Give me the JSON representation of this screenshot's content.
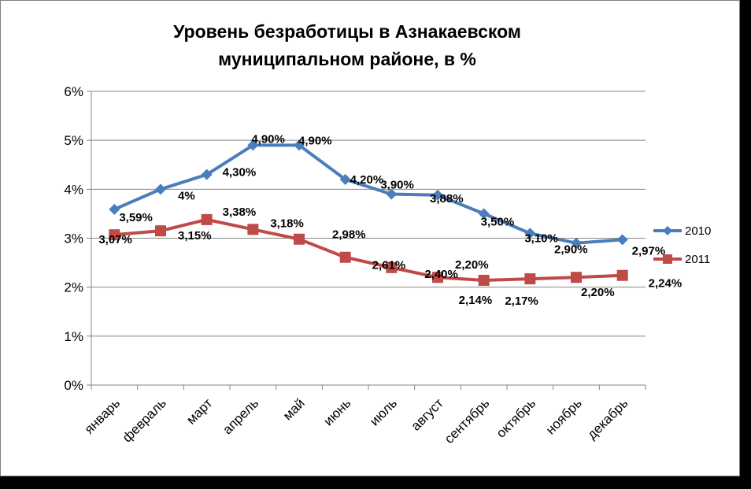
{
  "chart_data": {
    "type": "line",
    "title_lines": [
      "Уровень безработицы в Азнакаевском",
      "муниципальном районе, в %"
    ],
    "categories": [
      "январь",
      "февраль",
      "март",
      "апрель",
      "май",
      "июнь",
      "июль",
      "август",
      "сентябрь",
      "октябрь",
      "ноябрь",
      "декабрь"
    ],
    "yticks": [
      "0%",
      "1%",
      "2%",
      "3%",
      "4%",
      "5%",
      "6%"
    ],
    "ylim": [
      0,
      6
    ],
    "grid": true,
    "legend_position": "right",
    "series": [
      {
        "name": "2010",
        "color": "#4a7ebb",
        "marker": "diamond",
        "values": [
          3.59,
          4.0,
          4.3,
          4.9,
          4.9,
          4.2,
          3.9,
          3.88,
          3.5,
          3.1,
          2.9,
          2.97
        ],
        "labels": [
          "3,59%",
          "4%",
          "4,30%",
          "4,90%",
          "4,90%",
          "4,20%",
          "3,90%",
          "3,88%",
          "3,50%",
          "3,10%",
          "2,90%",
          "2,97%"
        ]
      },
      {
        "name": "2011",
        "color": "#be4b48",
        "marker": "square",
        "values": [
          3.07,
          3.15,
          3.38,
          3.18,
          2.98,
          2.61,
          2.4,
          2.2,
          2.14,
          2.17,
          2.2,
          2.24
        ],
        "labels": [
          "3,07%",
          "3,15%",
          "3,38%",
          "3,18%",
          "2,98%",
          "2,61%",
          "2,40%",
          "2,20%",
          "2,14%",
          "2,17%",
          "2,20%",
          "2,24%"
        ]
      }
    ]
  }
}
